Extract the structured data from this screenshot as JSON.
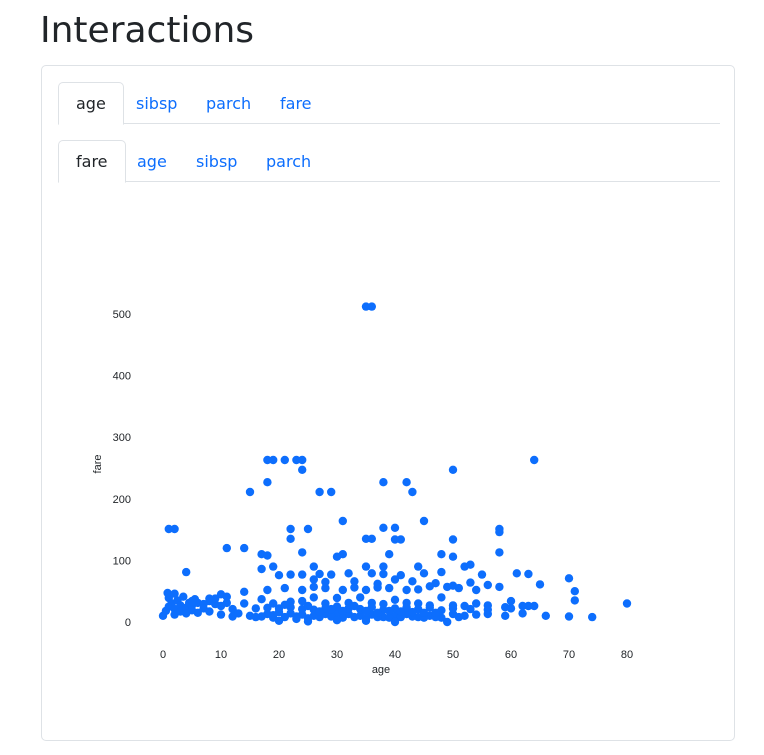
{
  "page": {
    "title": "Interactions"
  },
  "tabs_primary": [
    {
      "label": "age",
      "active": true
    },
    {
      "label": "sibsp",
      "active": false
    },
    {
      "label": "parch",
      "active": false
    },
    {
      "label": "fare",
      "active": false
    }
  ],
  "tabs_secondary": [
    {
      "label": "fare",
      "active": true
    },
    {
      "label": "age",
      "active": false
    },
    {
      "label": "sibsp",
      "active": false
    },
    {
      "label": "parch",
      "active": false
    }
  ],
  "chart_data": {
    "type": "scatter",
    "xlabel": "age",
    "ylabel": "fare",
    "xlim": [
      -2,
      82
    ],
    "ylim": [
      -20,
      540
    ],
    "x_ticks": [
      0,
      10,
      20,
      30,
      40,
      50,
      60,
      70,
      80
    ],
    "y_ticks": [
      0,
      100,
      200,
      300,
      400,
      500
    ],
    "marker_color": "#0d6efd",
    "points": [
      [
        35,
        512
      ],
      [
        36,
        512
      ],
      [
        18,
        263
      ],
      [
        19,
        263
      ],
      [
        21,
        263
      ],
      [
        23,
        263
      ],
      [
        24,
        263
      ],
      [
        64,
        263
      ],
      [
        18,
        227
      ],
      [
        38,
        227
      ],
      [
        42,
        227
      ],
      [
        24,
        247
      ],
      [
        50,
        247
      ],
      [
        15,
        211
      ],
      [
        27,
        211
      ],
      [
        29,
        211
      ],
      [
        43,
        211
      ],
      [
        1,
        151
      ],
      [
        2,
        151
      ],
      [
        22,
        151
      ],
      [
        25,
        151
      ],
      [
        58,
        151
      ],
      [
        58,
        146
      ],
      [
        31,
        164
      ],
      [
        45,
        164
      ],
      [
        38,
        153
      ],
      [
        40,
        153
      ],
      [
        35,
        135
      ],
      [
        36,
        135
      ],
      [
        40,
        134
      ],
      [
        41,
        134
      ],
      [
        22,
        135
      ],
      [
        50,
        134
      ],
      [
        11,
        120
      ],
      [
        14,
        120
      ],
      [
        24,
        113
      ],
      [
        31,
        110
      ],
      [
        39,
        110
      ],
      [
        48,
        110
      ],
      [
        50,
        106
      ],
      [
        58,
        113
      ],
      [
        17,
        110
      ],
      [
        18,
        108
      ],
      [
        30,
        106
      ],
      [
        4,
        81
      ],
      [
        17,
        86
      ],
      [
        19,
        90
      ],
      [
        26,
        90
      ],
      [
        35,
        90
      ],
      [
        38,
        90
      ],
      [
        44,
        90
      ],
      [
        52,
        90
      ],
      [
        53,
        93
      ],
      [
        20,
        76
      ],
      [
        22,
        77
      ],
      [
        24,
        77
      ],
      [
        27,
        78
      ],
      [
        29,
        77
      ],
      [
        32,
        79
      ],
      [
        36,
        79
      ],
      [
        38,
        78
      ],
      [
        41,
        76
      ],
      [
        45,
        79
      ],
      [
        48,
        81
      ],
      [
        55,
        77
      ],
      [
        61,
        79
      ],
      [
        63,
        78
      ],
      [
        70,
        71
      ],
      [
        71,
        50
      ],
      [
        71,
        35
      ],
      [
        65,
        61
      ],
      [
        10,
        45
      ],
      [
        14,
        49
      ],
      [
        18,
        52
      ],
      [
        21,
        55
      ],
      [
        24,
        52
      ],
      [
        26,
        57
      ],
      [
        28,
        55
      ],
      [
        31,
        52
      ],
      [
        33,
        56
      ],
      [
        35,
        52
      ],
      [
        37,
        56
      ],
      [
        39,
        55
      ],
      [
        42,
        52
      ],
      [
        44,
        53
      ],
      [
        46,
        58
      ],
      [
        49,
        57
      ],
      [
        51,
        55
      ],
      [
        54,
        52
      ],
      [
        58,
        57
      ],
      [
        60,
        34
      ],
      [
        63,
        26
      ],
      [
        66,
        10
      ],
      [
        70,
        9
      ],
      [
        74,
        8
      ],
      [
        80,
        30
      ],
      [
        17,
        37
      ],
      [
        19,
        30
      ],
      [
        22,
        33
      ],
      [
        24,
        34
      ],
      [
        26,
        40
      ],
      [
        28,
        30
      ],
      [
        30,
        39
      ],
      [
        32,
        31
      ],
      [
        34,
        40
      ],
      [
        36,
        31
      ],
      [
        38,
        29
      ],
      [
        40,
        36
      ],
      [
        42,
        31
      ],
      [
        44,
        30
      ],
      [
        46,
        27
      ],
      [
        48,
        40
      ],
      [
        50,
        27
      ],
      [
        52,
        26
      ],
      [
        54,
        30
      ],
      [
        56,
        27
      ],
      [
        59,
        24
      ],
      [
        62,
        26
      ],
      [
        64,
        26
      ],
      [
        18,
        13
      ],
      [
        20,
        16
      ],
      [
        22,
        14
      ],
      [
        24,
        12
      ],
      [
        26,
        10
      ],
      [
        28,
        13
      ],
      [
        30,
        15
      ],
      [
        32,
        13
      ],
      [
        34,
        10
      ],
      [
        36,
        12
      ],
      [
        38,
        8
      ],
      [
        40,
        10
      ],
      [
        42,
        13
      ],
      [
        44,
        8
      ],
      [
        46,
        10
      ],
      [
        48,
        7
      ],
      [
        50,
        13
      ],
      [
        52,
        10
      ],
      [
        54,
        12
      ],
      [
        56,
        13
      ],
      [
        59,
        10
      ],
      [
        62,
        14
      ],
      [
        19,
        7
      ],
      [
        21,
        8
      ],
      [
        23,
        9
      ],
      [
        25,
        6
      ],
      [
        27,
        8
      ],
      [
        29,
        9
      ],
      [
        31,
        7
      ],
      [
        33,
        8
      ],
      [
        35,
        6
      ],
      [
        37,
        8
      ],
      [
        39,
        7
      ],
      [
        41,
        8
      ],
      [
        43,
        9
      ],
      [
        45,
        7
      ],
      [
        47,
        8
      ],
      [
        49,
        0
      ],
      [
        51,
        8
      ],
      [
        20,
        2
      ],
      [
        25,
        1
      ],
      [
        30,
        3
      ],
      [
        35,
        2
      ],
      [
        40,
        0
      ],
      [
        20,
        22
      ],
      [
        22,
        24
      ],
      [
        24,
        21
      ],
      [
        26,
        20
      ],
      [
        28,
        22
      ],
      [
        30,
        25
      ],
      [
        32,
        22
      ],
      [
        34,
        21
      ],
      [
        36,
        24
      ],
      [
        38,
        20
      ],
      [
        40,
        22
      ],
      [
        42,
        24
      ],
      [
        44,
        21
      ],
      [
        46,
        23
      ],
      [
        48,
        19
      ],
      [
        50,
        22
      ],
      [
        53,
        21
      ],
      [
        56,
        20
      ],
      [
        60,
        22
      ],
      [
        0,
        10
      ],
      [
        0.5,
        18
      ],
      [
        1,
        25
      ],
      [
        1,
        39
      ],
      [
        1.5,
        30
      ],
      [
        2,
        21
      ],
      [
        2,
        12
      ],
      [
        2.5,
        35
      ],
      [
        3,
        27
      ],
      [
        3,
        17
      ],
      [
        3.5,
        41
      ],
      [
        4,
        23
      ],
      [
        4,
        14
      ],
      [
        4.5,
        31
      ],
      [
        5,
        27
      ],
      [
        5,
        19
      ],
      [
        5.5,
        37
      ],
      [
        6,
        31
      ],
      [
        6,
        15
      ],
      [
        7,
        29
      ],
      [
        7,
        22
      ],
      [
        8,
        34
      ],
      [
        8,
        17
      ],
      [
        9,
        29
      ],
      [
        9,
        38
      ],
      [
        10,
        26
      ],
      [
        10,
        12
      ],
      [
        11,
        31
      ],
      [
        12,
        21
      ],
      [
        12,
        9
      ],
      [
        13,
        14
      ],
      [
        14,
        30
      ],
      [
        15,
        10
      ],
      [
        16,
        22
      ],
      [
        17,
        9
      ],
      [
        0.8,
        47
      ],
      [
        2,
        46
      ],
      [
        5,
        34
      ],
      [
        8,
        38
      ],
      [
        11,
        41
      ],
      [
        16,
        8
      ],
      [
        18,
        23
      ],
      [
        19,
        11
      ],
      [
        21,
        28
      ],
      [
        23,
        5
      ],
      [
        25,
        26
      ],
      [
        27,
        17
      ],
      [
        29,
        21
      ],
      [
        31,
        18
      ],
      [
        33,
        26
      ],
      [
        35,
        18
      ],
      [
        37,
        15
      ],
      [
        39,
        18
      ],
      [
        41,
        17
      ],
      [
        43,
        16
      ],
      [
        45,
        15
      ],
      [
        47,
        15
      ],
      [
        26,
        69
      ],
      [
        28,
        65
      ],
      [
        33,
        66
      ],
      [
        37,
        62
      ],
      [
        40,
        69
      ],
      [
        43,
        66
      ],
      [
        47,
        63
      ],
      [
        50,
        59
      ],
      [
        53,
        64
      ],
      [
        56,
        60
      ]
    ]
  }
}
